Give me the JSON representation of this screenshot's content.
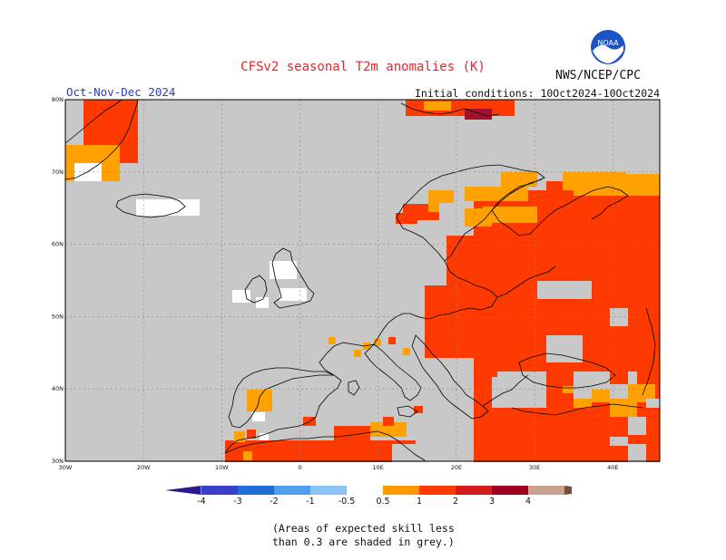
{
  "title": "CFSv2 seasonal T2m anomalies (K)",
  "agency": "NWS/NCEP/CPC",
  "logo_text": "NOAA",
  "season": "Oct-Nov-Dec 2024",
  "initial_conditions": "Initial conditions: 10Oct2024-10Oct2024",
  "note_line1": "(Areas of expected skill less",
  "note_line2": "than 0.3 are shaded in grey.)",
  "map": {
    "lat_labels": [
      "80N",
      "70N",
      "60N",
      "50N",
      "40N",
      "30N"
    ],
    "lon_labels": [
      "30W",
      "20W",
      "10W",
      "0",
      "10E",
      "20E",
      "30E",
      "40E"
    ],
    "lat_values": [
      80,
      70,
      60,
      50,
      40,
      30
    ],
    "lon_values": [
      -30,
      -20,
      -10,
      0,
      10,
      20,
      30,
      40
    ],
    "lon_range": [
      -30,
      46
    ],
    "lat_range": [
      30,
      80
    ]
  },
  "colorbar": {
    "labels": [
      "-4",
      "-3",
      "-2",
      "-1",
      "-0.5",
      "0.5",
      "1",
      "2",
      "3",
      "4"
    ],
    "colors": [
      "#2a1a8c",
      "#3b3fc8",
      "#1f6fd6",
      "#4f9ef0",
      "#8ac4f7",
      "#ffffff",
      "#ff9a00",
      "#ff3a00",
      "#d41a1a",
      "#a00020",
      "#c8a090",
      "#7a4a3a"
    ]
  },
  "palette": {
    "grey": "#c8c8c8",
    "orange": "#ffa100",
    "red": "#ff3a00",
    "darkred": "#a3122a",
    "white": "#ffffff"
  }
}
